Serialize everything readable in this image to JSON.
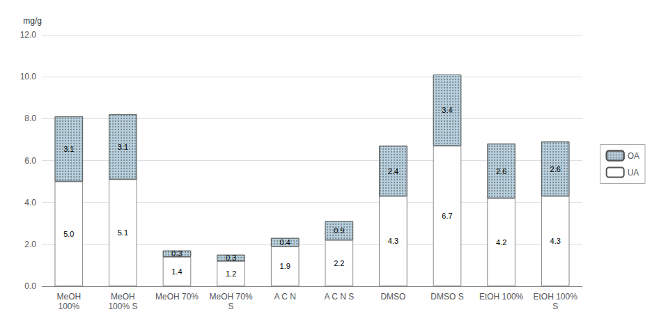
{
  "chart_data": {
    "type": "bar",
    "stacked": true,
    "categories": [
      "MeOH\n100%",
      "MeOH\n100% S",
      "MeOH 70%\n",
      "MeOH 70%\nS",
      "A C N\n",
      "A C N S\n",
      "DMSO\n",
      "DMSO S\n",
      "EtOH 100%\n",
      "EtOH 100%\nS"
    ],
    "series": [
      {
        "name": "UA",
        "color": "#ffffff",
        "values": [
          5.0,
          5.1,
          1.4,
          1.2,
          1.9,
          2.2,
          4.3,
          6.7,
          4.2,
          4.3
        ],
        "value_labels": [
          "5.0",
          "5.1",
          "1.4",
          "1.2",
          "1.9",
          "2.2",
          "4.3",
          "6.7",
          "4.2",
          "4.3"
        ]
      },
      {
        "name": "OA",
        "color": "#b8d0de",
        "values": [
          3.1,
          3.1,
          0.3,
          0.3,
          0.4,
          0.9,
          2.4,
          3.4,
          2.6,
          2.6
        ],
        "value_labels": [
          "3.1",
          "3.1",
          "0.3",
          "0.3",
          "0.4",
          "0.9",
          "2.4",
          "3.4",
          "2.6",
          "2.6"
        ]
      }
    ],
    "ylabel": "mg/g",
    "ylim": [
      0.0,
      12.0
    ],
    "yticks": [
      {
        "value": 0,
        "label": "0.0"
      },
      {
        "value": 2,
        "label": "2.0"
      },
      {
        "value": 4,
        "label": "4.0"
      },
      {
        "value": 6,
        "label": "6.0"
      },
      {
        "value": 8,
        "label": "8.0"
      },
      {
        "value": 10,
        "label": "10.0"
      },
      {
        "value": 12,
        "label": "12.0"
      }
    ],
    "grid": true,
    "data_labels": true,
    "legend": "right"
  }
}
